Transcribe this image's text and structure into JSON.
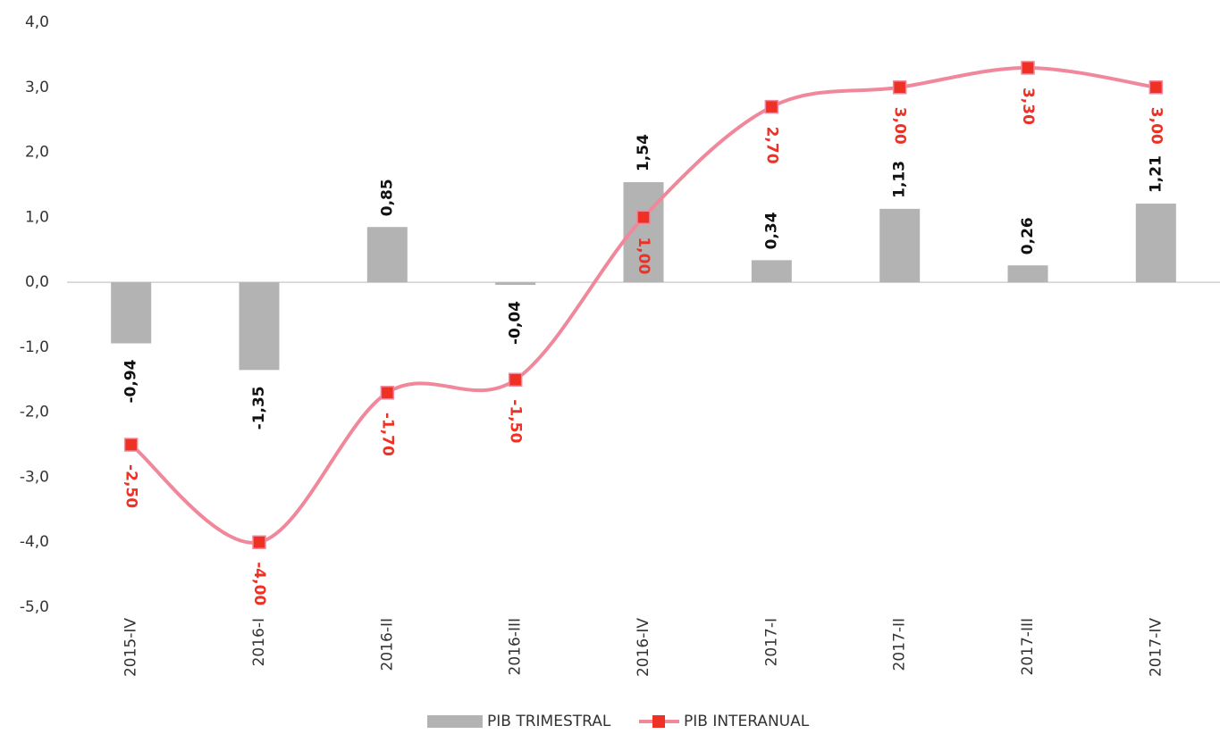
{
  "chart_data": {
    "type": "bar_line",
    "categories": [
      "2015-IV",
      "2016-I",
      "2016-II",
      "2016-III",
      "2016-IV",
      "2017-I",
      "2017-II",
      "2017-III",
      "2017-IV"
    ],
    "series": [
      {
        "name": "PIB TRIMESTRAL",
        "type": "bar",
        "color": "#b3b3b3",
        "values": [
          -0.94,
          -1.35,
          0.85,
          -0.04,
          1.54,
          0.34,
          1.13,
          0.26,
          1.21
        ],
        "value_labels": [
          "-0,94",
          "-1,35",
          "0,85",
          "-0,04",
          "1,54",
          "0,34",
          "1,13",
          "0,26",
          "1,21"
        ]
      },
      {
        "name": "PIB INTERANUAL",
        "type": "line",
        "color": "#f0879a",
        "marker_color": "#ee3124",
        "values": [
          -2.5,
          -4.0,
          -1.7,
          -1.5,
          1.0,
          2.7,
          3.0,
          3.3,
          3.0
        ],
        "value_labels": [
          "-2,50",
          "-4,00",
          "-1,70",
          "-1,50",
          "1,00",
          "2,70",
          "3,00",
          "3,30",
          "3,00"
        ]
      }
    ],
    "ylim": [
      -5,
      4
    ],
    "yticks": [
      {
        "value": -5,
        "label": "-5,0"
      },
      {
        "value": -4,
        "label": "-4,0"
      },
      {
        "value": -3,
        "label": "-3,0"
      },
      {
        "value": -2,
        "label": "-2,0"
      },
      {
        "value": -1,
        "label": "-1,0"
      },
      {
        "value": 0,
        "label": "0,0"
      },
      {
        "value": 1,
        "label": "1,0"
      },
      {
        "value": 2,
        "label": "2,0"
      },
      {
        "value": 3,
        "label": "3,0"
      },
      {
        "value": 4,
        "label": "4,0"
      }
    ],
    "grid": false,
    "legend": "bottom"
  }
}
